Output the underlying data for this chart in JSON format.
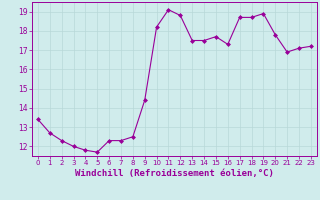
{
  "x": [
    0,
    1,
    2,
    3,
    4,
    5,
    6,
    7,
    8,
    9,
    10,
    11,
    12,
    13,
    14,
    15,
    16,
    17,
    18,
    19,
    20,
    21,
    22,
    23
  ],
  "y": [
    13.4,
    12.7,
    12.3,
    12.0,
    11.8,
    11.7,
    12.3,
    12.3,
    12.5,
    14.4,
    18.2,
    19.1,
    18.8,
    17.5,
    17.5,
    17.7,
    17.3,
    18.7,
    18.7,
    18.9,
    17.8,
    16.9,
    17.1,
    17.2
  ],
  "line_color": "#990099",
  "marker": "D",
  "markersize": 2.0,
  "linewidth": 0.8,
  "xlabel": "Windchill (Refroidissement éolien,°C)",
  "xlim": [
    -0.5,
    23.5
  ],
  "ylim": [
    11.5,
    19.5
  ],
  "yticks": [
    12,
    13,
    14,
    15,
    16,
    17,
    18,
    19
  ],
  "xticks": [
    0,
    1,
    2,
    3,
    4,
    5,
    6,
    7,
    8,
    9,
    10,
    11,
    12,
    13,
    14,
    15,
    16,
    17,
    18,
    19,
    20,
    21,
    22,
    23
  ],
  "grid_color": "#b8d8d8",
  "background_color": "#d0ecec",
  "tick_fontsize": 5.5,
  "xlabel_fontsize": 6.5,
  "line_purple": "#880088"
}
